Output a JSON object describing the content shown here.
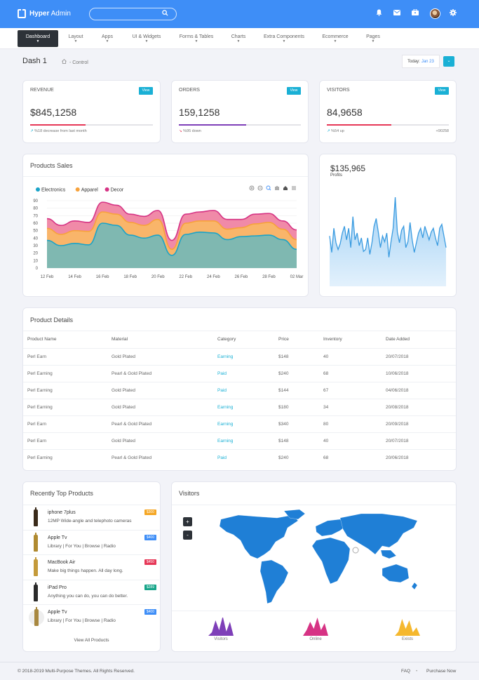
{
  "brand": {
    "name_bold": "Hyper",
    "name_rest": " Admin"
  },
  "icons": {
    "logo": "logo-mark-icon",
    "search": "search-icon",
    "bell": "bell-icon",
    "mail": "mail-icon",
    "briefcase": "briefcase-icon",
    "gear": "gear-icon",
    "home": "home-icon"
  },
  "nav": [
    {
      "label": "Dashboard",
      "active": true
    },
    {
      "label": "Layout"
    },
    {
      "label": "Apps"
    },
    {
      "label": "UI & Widgets"
    },
    {
      "label": "Forms & Tables"
    },
    {
      "label": "Charts"
    },
    {
      "label": "Extra Components"
    },
    {
      "label": "Ecommerce"
    },
    {
      "label": "Pages"
    }
  ],
  "page": {
    "title": "Dash 1",
    "crumb": "- Control",
    "today_label": "Today:",
    "today_value": "Jan 23"
  },
  "stats": [
    {
      "label": "REVENUE",
      "button": "View",
      "value": "$845,1258",
      "note": "%18 decrease from last month",
      "note_right": "",
      "progress": 0.45,
      "color": "#e63757"
    },
    {
      "label": "ORDERS",
      "button": "View",
      "value": "159,1258",
      "note": "%95 down",
      "note_right": "",
      "progress": 0.55,
      "color": "#7e3fb8"
    },
    {
      "label": "VISITORS",
      "button": "View",
      "value": "84,9658",
      "note": "%54 up",
      "note_right": "+90258",
      "progress": 0.53,
      "color": "#e63757"
    }
  ],
  "sales": {
    "title": "Products Sales",
    "legend": [
      "Electronics",
      "Apparel",
      "Decor"
    ]
  },
  "profit": {
    "value": "$135,965",
    "label": "Profits"
  },
  "chart_data": [
    {
      "type": "area",
      "stacked": true,
      "title": "Products Sales",
      "x": [
        "12 Feb",
        "13 Feb",
        "14 Feb",
        "15 Feb",
        "16 Feb",
        "17 Feb",
        "18 Feb",
        "19 Feb",
        "20 Feb",
        "21 Feb",
        "22 Feb",
        "23 Feb",
        "24 Feb",
        "25 Feb",
        "26 Feb",
        "27 Feb",
        "28 Feb",
        "01 Mar",
        "02 Mar"
      ],
      "xticks": [
        "12 Feb",
        "14 Feb",
        "16 Feb",
        "18 Feb",
        "20 Feb",
        "22 Feb",
        "24 Feb",
        "26 Feb",
        "28 Feb",
        "02 Mar"
      ],
      "ylim": [
        0,
        90
      ],
      "yticks": [
        0,
        10,
        20,
        30,
        40,
        50,
        60,
        70,
        80,
        90
      ],
      "grid": true,
      "legend": "top-left",
      "series": [
        {
          "name": "Electronics",
          "color": "#1aa3c8",
          "values": [
            37,
            30,
            33,
            31,
            60,
            57,
            44,
            40,
            44,
            17,
            45,
            48,
            47,
            38,
            42,
            43,
            44,
            38,
            25
          ]
        },
        {
          "name": "Apparel",
          "color": "#f7a23b",
          "values": [
            16,
            15,
            17,
            18,
            15,
            15,
            17,
            17,
            21,
            8,
            15,
            15,
            16,
            14,
            12,
            16,
            17,
            14,
            13
          ]
        },
        {
          "name": "Decor",
          "color": "#d63384",
          "values": [
            13,
            12,
            13,
            12,
            13,
            12,
            11,
            12,
            12,
            12,
            12,
            12,
            14,
            13,
            11,
            13,
            12,
            11,
            13
          ]
        }
      ]
    },
    {
      "type": "area",
      "title": "",
      "color": "#3a9be0",
      "values": [
        52,
        38,
        62,
        55,
        40,
        45,
        55,
        62,
        45,
        60,
        38,
        70,
        52,
        48,
        42,
        56,
        45,
        38,
        52,
        35,
        40,
        62,
        75,
        52,
        42,
        48,
        40,
        55,
        33,
        48,
        62,
        92,
        50,
        48,
        56,
        60,
        38,
        45,
        66,
        45,
        30,
        42,
        40,
        50,
        60,
        55,
        48,
        44,
        58,
        45,
        56,
        65,
        40,
        57,
        32,
        48,
        52,
        55,
        48,
        42,
        48,
        50,
        55,
        48,
        58,
        52,
        48,
        62,
        80,
        48,
        55,
        42,
        56,
        50,
        62,
        70,
        60,
        58,
        40,
        62,
        55,
        50,
        35,
        45,
        52,
        55,
        58,
        60,
        48,
        55,
        42,
        58,
        62,
        55,
        40,
        50,
        55,
        60,
        48,
        42,
        58,
        65,
        50,
        45,
        62,
        55,
        48,
        52,
        60,
        45,
        58,
        62,
        50,
        48,
        55,
        60,
        45,
        52,
        58,
        50,
        62,
        48,
        55,
        60,
        52,
        45,
        58,
        62,
        50,
        55
      ],
      "ylim": [
        0,
        100
      ]
    },
    {
      "type": "area",
      "title": "",
      "color": "#7e3fb8",
      "values": [
        0,
        5,
        22,
        8,
        28,
        6,
        20,
        0
      ]
    },
    {
      "type": "area",
      "title": "",
      "color": "#d63384",
      "values": [
        0,
        8,
        20,
        10,
        26,
        8,
        18,
        0
      ]
    },
    {
      "type": "area",
      "title": "",
      "color": "#f5b82e",
      "values": [
        0,
        6,
        24,
        10,
        22,
        5,
        12,
        0
      ]
    }
  ],
  "details": {
    "title": "Product Details",
    "columns": [
      "Product Name",
      "Material",
      "Category",
      "Price",
      "Inventory",
      "Date Added"
    ],
    "rows": [
      [
        "Perl Earn",
        "Gold Plated",
        "Earning",
        "$148",
        "40",
        "20/07/2018"
      ],
      [
        "Perl Earning",
        "Pearl & Gold Plated",
        "Paid",
        "$240",
        "68",
        "10/06/2018"
      ],
      [
        "Perl Earning",
        "Gold Plated",
        "Paid",
        "$144",
        "67",
        "04/06/2018"
      ],
      [
        "Perl Earning",
        "Gold Plated",
        "Earning",
        "$180",
        "34",
        "20/08/2018"
      ],
      [
        "Perl Earn",
        "Pearl & Gold Plated",
        "Earning",
        "$340",
        "80",
        "20/09/2018"
      ],
      [
        "Perl Earn",
        "Gold Plated",
        "Earning",
        "$148",
        "40",
        "20/07/2018"
      ],
      [
        "Perl Earning",
        "Pearl & Gold Plated",
        "Paid",
        "$240",
        "68",
        "20/06/2018"
      ]
    ]
  },
  "recent": {
    "title": "Recently Top Products",
    "footer": "View All Products",
    "items": [
      {
        "name": "iphone 7plus",
        "desc": "12MP Wide-angle and telephoto cameras",
        "price": "$300",
        "color": "#f5a623",
        "bottle": "#3a2a1a"
      },
      {
        "name": "Apple Tv",
        "desc": "Library | For You | Browse | Radio",
        "price": "$400",
        "color": "#3e8ef7",
        "bottle": "#b08a30"
      },
      {
        "name": "MacBook Air",
        "desc": "Make big things happen. All day long.",
        "price": "$450",
        "color": "#e63757",
        "bottle": "#c49a3a"
      },
      {
        "name": "iPad Pro",
        "desc": "Anything you can do, you can do better.",
        "price": "$289",
        "color": "#17a589",
        "bottle": "#2a2a2a"
      },
      {
        "name": "Apple Tv",
        "desc": "Library | For You | Browse | Radio",
        "price": "$400",
        "color": "#3e8ef7",
        "bottle": "#a88840"
      }
    ]
  },
  "visitors": {
    "title": "Visitors",
    "zoom_in": "+",
    "zoom_out": "-",
    "sparks": [
      "Visitors",
      "Online",
      "Exists"
    ]
  },
  "footer": {
    "copy": "© 2018-2019 Multi-Purpose Themes. All Rights Reserved.",
    "faq": "FAQ",
    "sep": "•",
    "purchase": "Purchase Now"
  }
}
